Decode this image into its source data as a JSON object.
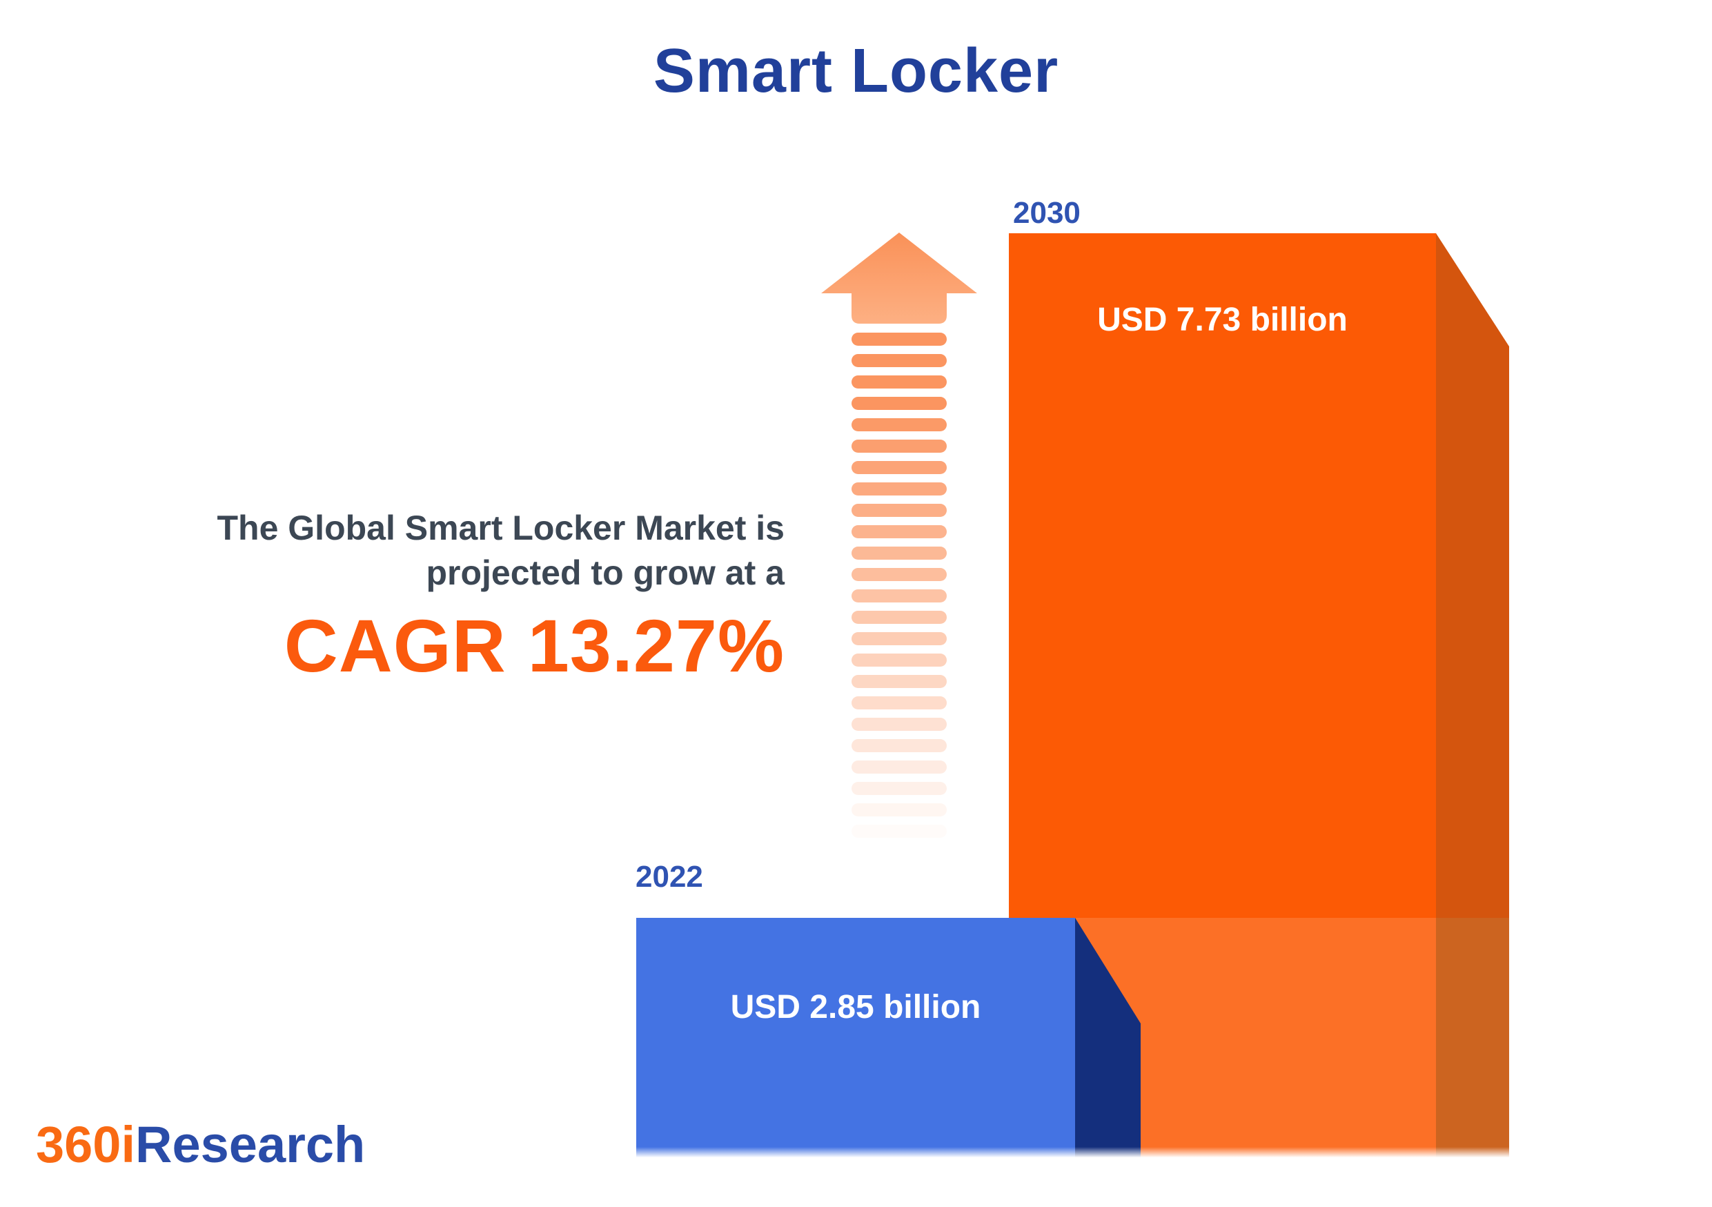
{
  "title": "Smart Locker",
  "description": {
    "line1": "The Global Smart Locker Market is",
    "line2": "projected to grow at a",
    "cagr_label": "CAGR 13.27%"
  },
  "chart_data": {
    "type": "bar",
    "title": "Smart Locker",
    "orientation": "vertical",
    "categories": [
      "2022",
      "2030"
    ],
    "values": [
      2.85,
      7.73
    ],
    "unit": "USD billion",
    "value_labels": [
      "USD 2.85 billion",
      "USD 7.73 billion"
    ],
    "cagr_percent": 13.27,
    "bar_colors": [
      "#4473E3",
      "#FC5A05"
    ],
    "legend": "none",
    "grid": "off",
    "annotations": [
      "The Global Smart Locker Market is projected to grow at a CAGR 13.27%"
    ]
  },
  "logo": {
    "part1": "360i",
    "part2": "Research"
  },
  "icons": {
    "growth_arrow": "dashed-up-arrow-icon"
  },
  "colors": {
    "title_text": "#21409A",
    "year_label": "#2F53B2",
    "description_text": "#3C4754",
    "cagr_text": "#FB5A0D",
    "bar_2022_face": "#4473E3",
    "bar_2022_side": "#142F7D",
    "bar_2030_face": "#FC5A05",
    "bar_2030_face_band": "#FC7026",
    "bar_2030_side": "#D4550E",
    "bar_2030_side_band": "#CC6420",
    "arrow": "#FB9560",
    "value_text": "#FFFFFF",
    "logo_orange": "#F96A13",
    "logo_blue": "#2A4CA8"
  }
}
